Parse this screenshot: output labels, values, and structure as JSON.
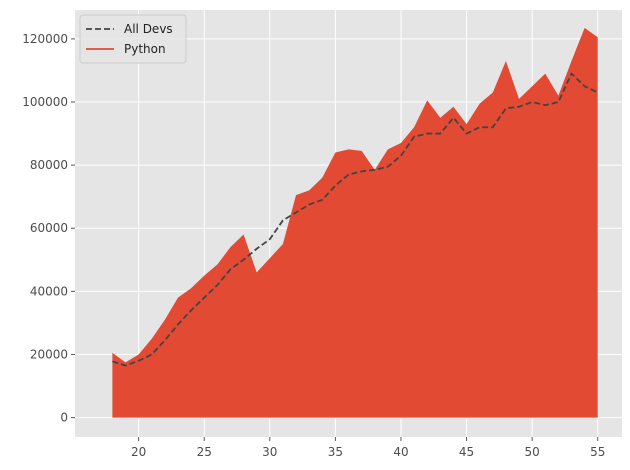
{
  "chart_data": {
    "type": "area",
    "title": "",
    "xlabel": "",
    "ylabel": "",
    "xlim": [
      15.15,
      56.85
    ],
    "ylim": [
      -6150,
      129150
    ],
    "x_ticks": [
      20,
      25,
      30,
      35,
      40,
      45,
      50,
      55
    ],
    "y_ticks": [
      0,
      20000,
      40000,
      60000,
      80000,
      100000,
      120000
    ],
    "x_tick_labels": [
      "20",
      "25",
      "30",
      "35",
      "40",
      "45",
      "50",
      "55"
    ],
    "y_tick_labels": [
      "0",
      "20000",
      "40000",
      "60000",
      "80000",
      "100000",
      "120000"
    ],
    "grid": true,
    "legend_position": "top-left",
    "x": [
      18,
      19,
      20,
      21,
      22,
      23,
      24,
      25,
      26,
      27,
      28,
      29,
      30,
      31,
      32,
      33,
      34,
      35,
      36,
      37,
      38,
      39,
      40,
      41,
      42,
      43,
      44,
      45,
      46,
      47,
      48,
      49,
      50,
      51,
      52,
      53,
      54,
      55
    ],
    "series": [
      {
        "name": "All Devs",
        "style": "dashed",
        "color": "#444444",
        "values": [
          17800,
          16500,
          18000,
          20000,
          24500,
          29500,
          34000,
          38000,
          42000,
          47000,
          50000,
          53500,
          56500,
          62500,
          65000,
          67500,
          69000,
          73500,
          77000,
          78000,
          78500,
          79500,
          83000,
          89000,
          90000,
          90000,
          95000,
          90000,
          92000,
          92000,
          98000,
          98500,
          100000,
          99000,
          100000,
          109000,
          105000,
          103000
        ]
      },
      {
        "name": "Python",
        "style": "filled-area",
        "color": "#e24a33",
        "values": [
          20500,
          17500,
          20000,
          25000,
          31000,
          38000,
          41000,
          45000,
          48500,
          54000,
          58000,
          46000,
          50500,
          55000,
          70500,
          72000,
          76000,
          84000,
          85000,
          84500,
          78500,
          85000,
          87000,
          92000,
          100500,
          95000,
          98500,
          93000,
          99500,
          103000,
          113000,
          101000,
          105000,
          109000,
          102000,
          113000,
          123500,
          120500
        ]
      }
    ]
  }
}
